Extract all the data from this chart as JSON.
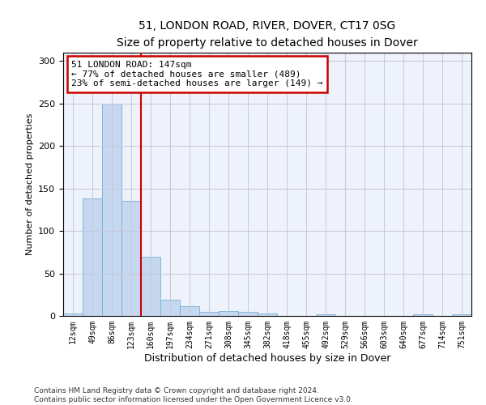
{
  "title": "51, LONDON ROAD, RIVER, DOVER, CT17 0SG",
  "subtitle": "Size of property relative to detached houses in Dover",
  "xlabel": "Distribution of detached houses by size in Dover",
  "ylabel": "Number of detached properties",
  "footer_line1": "Contains HM Land Registry data © Crown copyright and database right 2024.",
  "footer_line2": "Contains public sector information licensed under the Open Government Licence v3.0.",
  "annotation_line1": "51 LONDON ROAD: 147sqm",
  "annotation_line2": "← 77% of detached houses are smaller (489)",
  "annotation_line3": "23% of semi-detached houses are larger (149) →",
  "bar_categories": [
    "12sqm",
    "49sqm",
    "86sqm",
    "123sqm",
    "160sqm",
    "197sqm",
    "234sqm",
    "271sqm",
    "308sqm",
    "345sqm",
    "382sqm",
    "418sqm",
    "455sqm",
    "492sqm",
    "529sqm",
    "566sqm",
    "603sqm",
    "640sqm",
    "677sqm",
    "714sqm",
    "751sqm"
  ],
  "bar_values": [
    3,
    138,
    250,
    135,
    70,
    19,
    11,
    5,
    6,
    5,
    3,
    0,
    0,
    2,
    0,
    0,
    0,
    0,
    2,
    0,
    2
  ],
  "bar_color": "#c5d8f0",
  "bar_edge_color": "#7aaed4",
  "vline_color": "#cc0000",
  "vline_x_index": 3.5,
  "annotation_box_color": "#cc0000",
  "background_color": "#ffffff",
  "axes_bg_color": "#eef2fa",
  "grid_color": "#c8c8d8",
  "ylim": [
    0,
    310
  ],
  "yticks": [
    0,
    50,
    100,
    150,
    200,
    250,
    300
  ]
}
